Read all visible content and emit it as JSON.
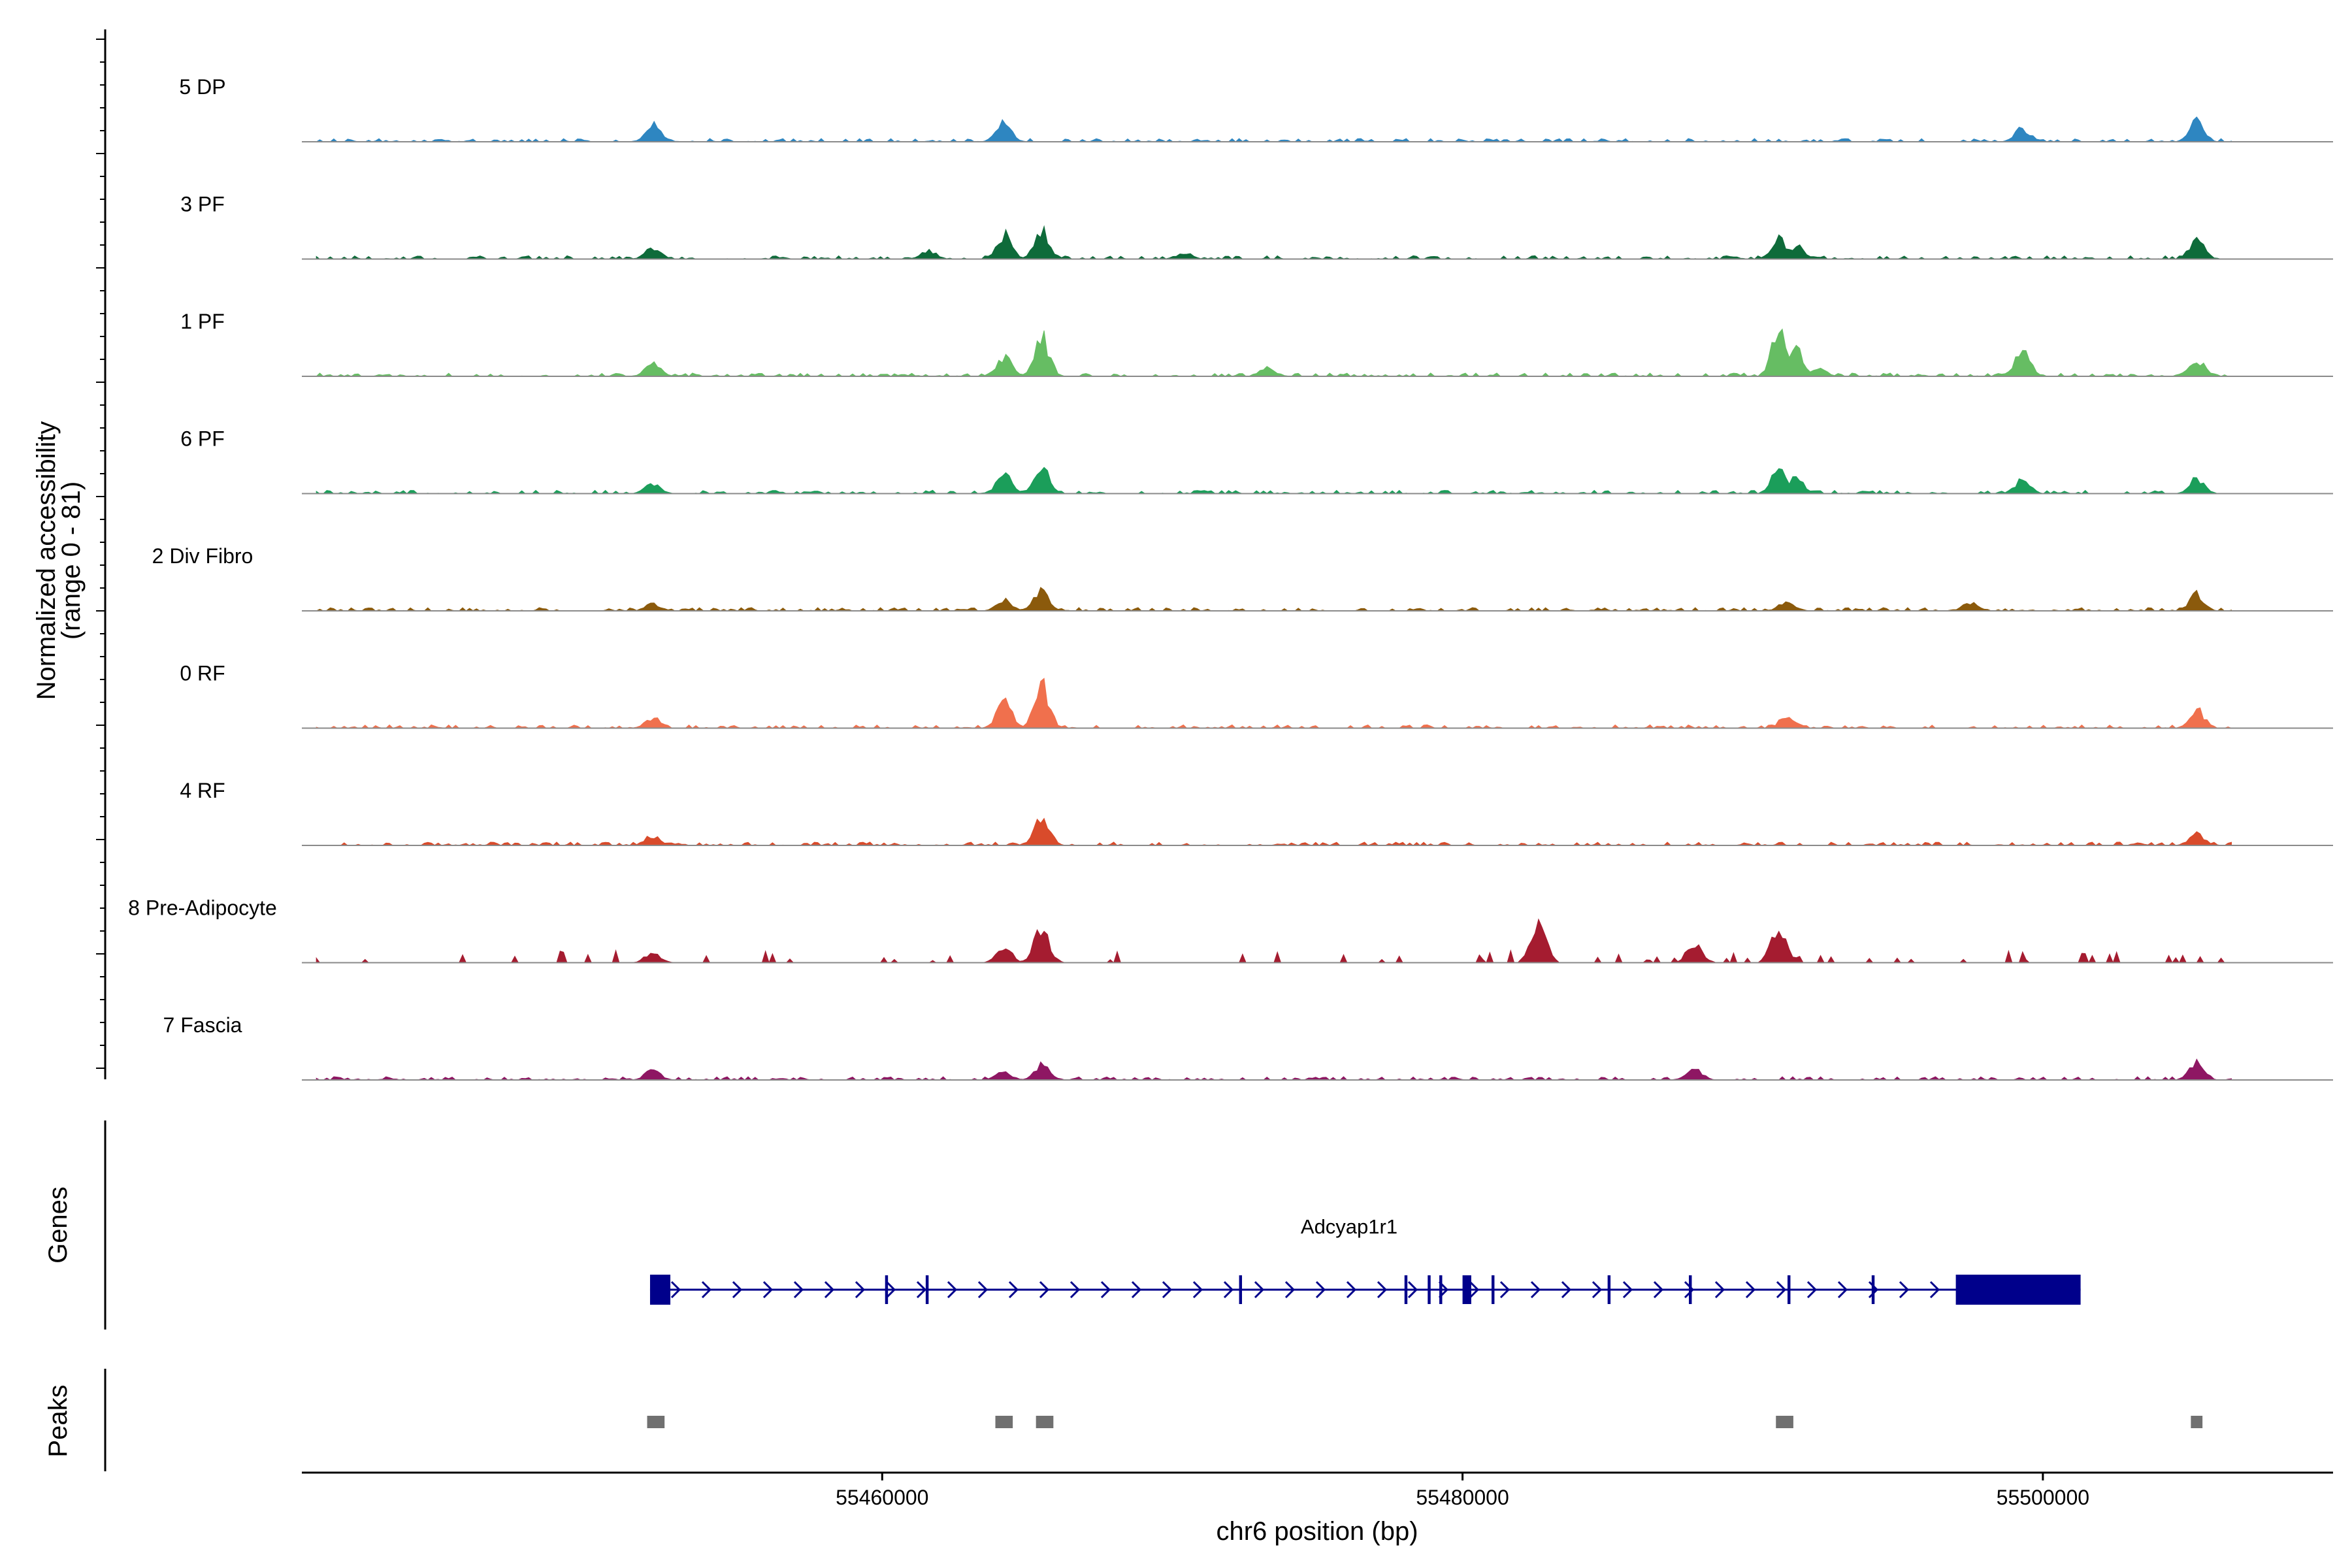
{
  "chart_data": {
    "type": "area",
    "title": "",
    "xlabel": "chr6 position (bp)",
    "ylabel_line1": "Normalized accessibility",
    "ylabel_line2": "(range 0 - 81)",
    "y_range": [
      0,
      81
    ],
    "xlim": [
      55440000,
      55510000
    ],
    "x_ticks": [
      55460000,
      55480000,
      55500000
    ],
    "x_tick_labels": [
      "55460000",
      "55480000",
      "55500000"
    ],
    "tracks": [
      {
        "name": "5 DP",
        "color": "#2E86C1",
        "peaks": [
          [
            55452100,
            10
          ],
          [
            55464200,
            11
          ],
          [
            55499300,
            8
          ],
          [
            55505300,
            12
          ]
        ]
      },
      {
        "name": "3 PF",
        "color": "#0E6B3A",
        "peaks": [
          [
            55452100,
            7
          ],
          [
            55464200,
            15
          ],
          [
            55465500,
            18
          ],
          [
            55461600,
            5
          ],
          [
            55470400,
            4
          ],
          [
            55490900,
            12
          ],
          [
            55491500,
            8
          ],
          [
            55505300,
            11
          ]
        ]
      },
      {
        "name": "1 PF",
        "color": "#66BD63",
        "peaks": [
          [
            55452100,
            9
          ],
          [
            55464200,
            12
          ],
          [
            55465500,
            23
          ],
          [
            55473300,
            5
          ],
          [
            55490900,
            27
          ],
          [
            55491500,
            15
          ],
          [
            55499300,
            15
          ],
          [
            55505300,
            10
          ],
          [
            55492300,
            4
          ]
        ]
      },
      {
        "name": "6 PF",
        "color": "#1B9E5A",
        "peaks": [
          [
            55452100,
            6
          ],
          [
            55464200,
            12
          ],
          [
            55465500,
            15
          ],
          [
            55490900,
            14
          ],
          [
            55491500,
            10
          ],
          [
            55499300,
            8
          ],
          [
            55505300,
            9
          ]
        ]
      },
      {
        "name": "2 Div Fibro",
        "color": "#8B5A0C",
        "peaks": [
          [
            55452100,
            4
          ],
          [
            55464200,
            7
          ],
          [
            55465500,
            12
          ],
          [
            55491200,
            6
          ],
          [
            55497500,
            5
          ],
          [
            55505300,
            10
          ]
        ]
      },
      {
        "name": "0 RF",
        "color": "#F0704D",
        "peaks": [
          [
            55452100,
            6
          ],
          [
            55464200,
            16
          ],
          [
            55465500,
            25
          ],
          [
            55491200,
            8
          ],
          [
            55505300,
            11
          ]
        ]
      },
      {
        "name": "4 RF",
        "color": "#D94B2B",
        "peaks": [
          [
            55452100,
            6
          ],
          [
            55465500,
            19
          ],
          [
            55505300,
            7
          ]
        ]
      },
      {
        "name": "8 Pre-Adipocyte",
        "color": "#A51C30",
        "peaks": [
          [
            55465500,
            20
          ],
          [
            55482600,
            26
          ],
          [
            55490900,
            22
          ],
          [
            55488000,
            12
          ],
          [
            55464200,
            9
          ],
          [
            55452100,
            6
          ]
        ]
      },
      {
        "name": "7 Fascia",
        "color": "#8E1763",
        "peaks": [
          [
            55452100,
            6
          ],
          [
            55465500,
            9
          ],
          [
            55488000,
            7
          ],
          [
            55505300,
            11
          ],
          [
            55464200,
            5
          ]
        ]
      }
    ],
    "genes_label": "Genes",
    "gene": {
      "name": "Adcyap1r1",
      "start": 55452000,
      "end": 55501300,
      "strand": "+",
      "exons": [
        [
          55452000,
          55452700
        ],
        [
          55460100,
          55460200
        ],
        [
          55461500,
          55461600
        ],
        [
          55472300,
          55472400
        ],
        [
          55478000,
          55478100
        ],
        [
          55478800,
          55478900
        ],
        [
          55479200,
          55479300
        ],
        [
          55480000,
          55480300
        ],
        [
          55481000,
          55481100
        ],
        [
          55485000,
          55485100
        ],
        [
          55487800,
          55487900
        ],
        [
          55491200,
          55491300
        ],
        [
          55494100,
          55494200
        ],
        [
          55497000,
          55501300
        ]
      ]
    },
    "peaks_label": "Peaks",
    "peak_regions": [
      [
        55451900,
        55452500
      ],
      [
        55463900,
        55464500
      ],
      [
        55465300,
        55465900
      ],
      [
        55490800,
        55491400
      ],
      [
        55505100,
        55505500
      ]
    ]
  }
}
